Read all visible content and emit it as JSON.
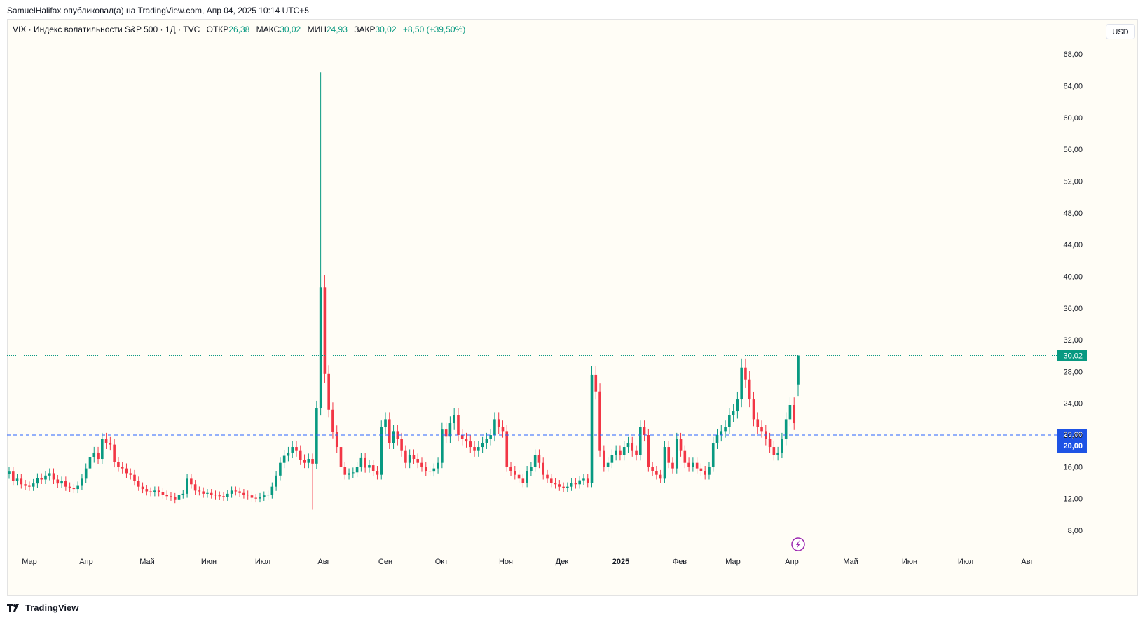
{
  "caption": "SamuelHalifax опубликовал(а) на TradingView.com, Апр 04, 2025 10:14 UTC+5",
  "legend": {
    "symbol": "VIX · Индекс волатильности S&P 500 · 1Д · TVC",
    "open_label": "ОТКР",
    "open_value": "26,38",
    "high_label": "МАКС",
    "high_value": "30,02",
    "low_label": "МИН",
    "low_value": "24,93",
    "close_label": "ЗАКР",
    "close_value": "30,02",
    "change": "+8,50 (+39,50%)"
  },
  "currency_button": "USD",
  "footer_logo": "TradingView",
  "colors": {
    "up": "#089981",
    "down": "#f23645",
    "background": "#fffdf6",
    "hline": "#2962ff",
    "axis_text": "#131722"
  },
  "chart_data": {
    "type": "candlestick",
    "y_ticks": [
      "68,00",
      "64,00",
      "60,00",
      "56,00",
      "52,00",
      "48,00",
      "44,00",
      "40,00",
      "36,00",
      "32,00",
      "28,00",
      "24,00",
      "20,00",
      "16,00",
      "12,00",
      "8,00"
    ],
    "x_ticks": [
      "Мар",
      "Апр",
      "Май",
      "Июн",
      "Июл",
      "Авг",
      "Сен",
      "Окт",
      "Ноя",
      "Дек",
      "2025",
      "Фев",
      "Мар",
      "Апр",
      "Май",
      "Июн",
      "Июл",
      "Авг"
    ],
    "last_price_label": "30,02",
    "horizontal_line_labels": [
      "20,00",
      "20,00"
    ],
    "horizontal_line_value": 20.0,
    "last_price_value": 30.02,
    "ylim": [
      5,
      70
    ],
    "closes": [
      15.4,
      14.2,
      14.5,
      13.8,
      13.6,
      13.5,
      13.9,
      14.6,
      14.4,
      14.9,
      15.2,
      14.4,
      13.9,
      14.2,
      13.5,
      13.3,
      13.2,
      13.6,
      14.5,
      15.8,
      17.2,
      17.8,
      17.0,
      19.5,
      19.0,
      18.8,
      16.6,
      16.0,
      15.8,
      15.2,
      15.0,
      14.2,
      13.5,
      13.2,
      12.9,
      12.8,
      13.0,
      12.8,
      12.5,
      12.3,
      12.2,
      11.9,
      12.5,
      12.6,
      14.5,
      13.8,
      13.0,
      12.9,
      12.6,
      12.7,
      12.5,
      12.4,
      12.3,
      12.2,
      12.6,
      13.0,
      12.9,
      12.7,
      12.5,
      12.4,
      12.1,
      12.0,
      12.2,
      12.4,
      12.5,
      13.5,
      14.9,
      16.5,
      17.4,
      17.8,
      18.5,
      18.0,
      16.9,
      16.5,
      17.0,
      16.4,
      23.4,
      38.6,
      27.7,
      23.2,
      20.4,
      18.5,
      16.0,
      15.0,
      15.2,
      15.3,
      16.0,
      17.1,
      15.9,
      16.2,
      15.5,
      15.0,
      21.0,
      22.0,
      19.0,
      20.5,
      19.5,
      18.0,
      16.5,
      17.5,
      17.0,
      16.5,
      16.0,
      15.5,
      15.4,
      15.8,
      16.5,
      20.7,
      19.8,
      21.5,
      22.5,
      20.0,
      19.5,
      19.2,
      18.5,
      18.0,
      18.5,
      19.0,
      19.5,
      20.0,
      22.0,
      21.0,
      20.5,
      16.0,
      15.5,
      15.0,
      14.5,
      14.0,
      15.5,
      16.0,
      17.5,
      16.5,
      15.0,
      14.5,
      14.0,
      13.8,
      13.5,
      13.3,
      13.5,
      14.0,
      13.8,
      14.3,
      14.5,
      14.0,
      27.6,
      25.5,
      18.0,
      16.0,
      16.5,
      17.5,
      18.0,
      17.5,
      18.5,
      19.0,
      18.0,
      17.5,
      21.0,
      20.0,
      16.0,
      15.5,
      15.0,
      14.5,
      18.5,
      16.5,
      15.8,
      19.5,
      18.0,
      16.5,
      16.0,
      16.5,
      15.8,
      15.5,
      15.0,
      16.0,
      19.0,
      20.0,
      20.5,
      21.0,
      22.5,
      23.0,
      24.5,
      28.5,
      27.0,
      24.5,
      22.0,
      21.0,
      20.5,
      19.5,
      18.5,
      17.5,
      17.8,
      19.5,
      22.0,
      23.8,
      21.5,
      30.02
    ]
  }
}
